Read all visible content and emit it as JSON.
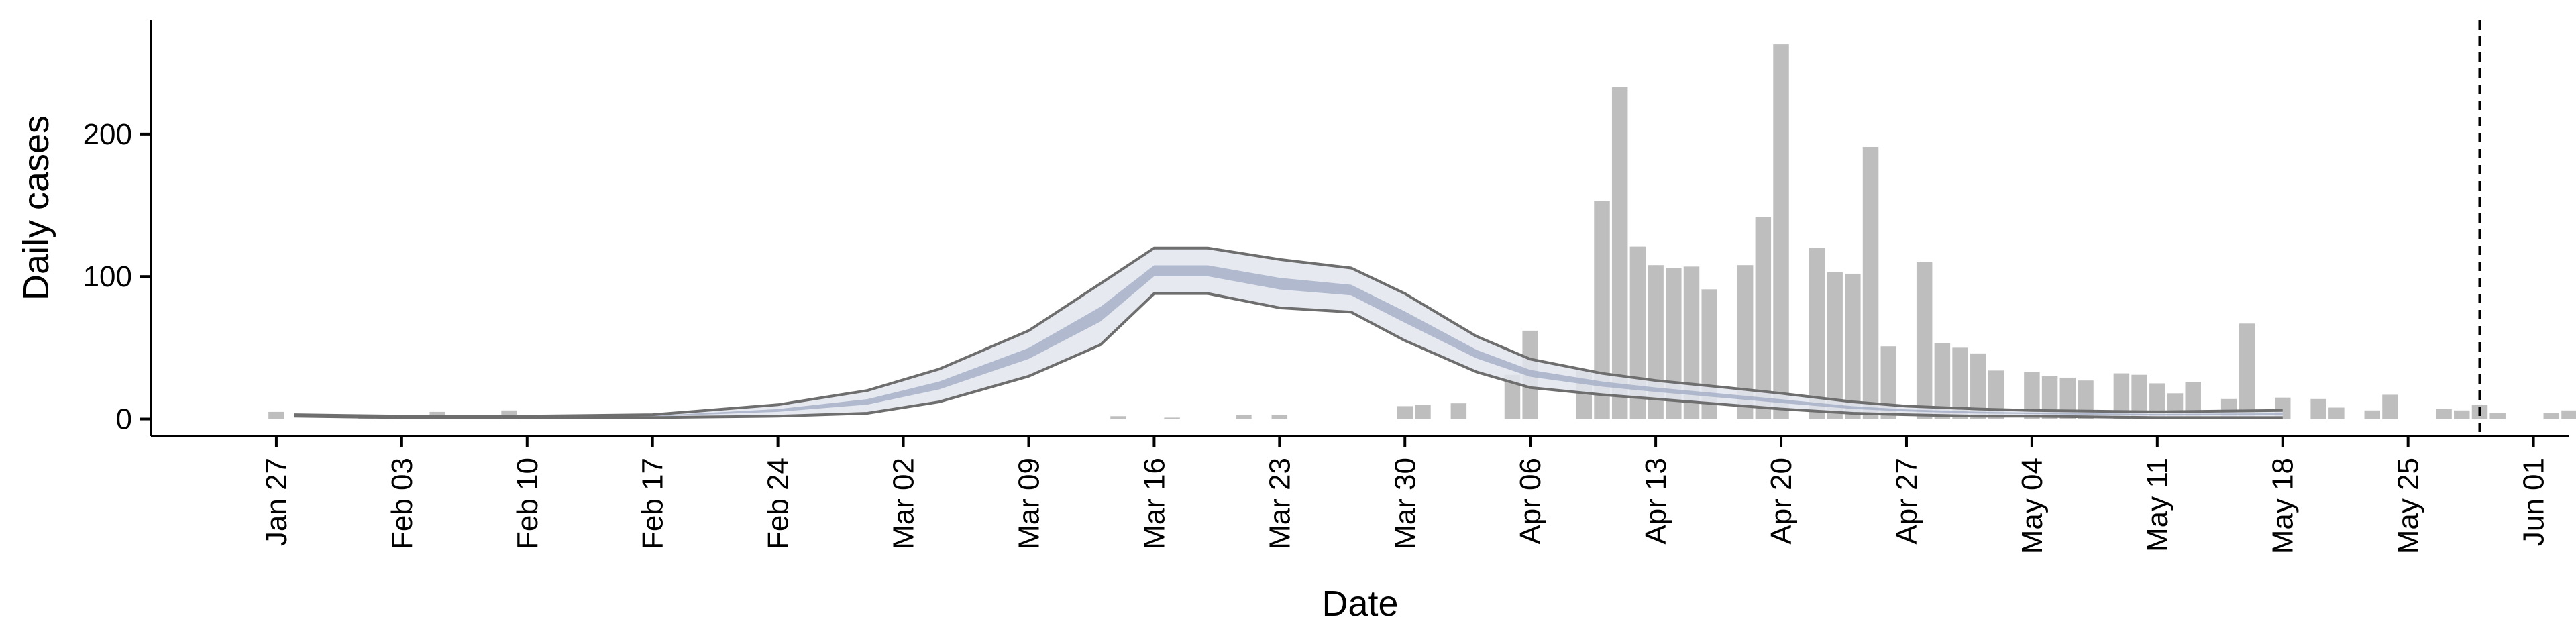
{
  "chart_data": {
    "type": "bar",
    "title": "",
    "xlabel": "Date",
    "ylabel": "Daily cases",
    "x_axis": {
      "type": "date",
      "range": [
        "2020-01-20",
        "2020-06-03"
      ]
    },
    "ylim": [
      -12,
      280
    ],
    "x_ticks": [
      {
        "date": "2020-01-27",
        "label": "Jan 27"
      },
      {
        "date": "2020-02-03",
        "label": "Feb 03"
      },
      {
        "date": "2020-02-10",
        "label": "Feb 10"
      },
      {
        "date": "2020-02-17",
        "label": "Feb 17"
      },
      {
        "date": "2020-02-24",
        "label": "Feb 24"
      },
      {
        "date": "2020-03-02",
        "label": "Mar 02"
      },
      {
        "date": "2020-03-09",
        "label": "Mar 09"
      },
      {
        "date": "2020-03-16",
        "label": "Mar 16"
      },
      {
        "date": "2020-03-23",
        "label": "Mar 23"
      },
      {
        "date": "2020-03-30",
        "label": "Mar 30"
      },
      {
        "date": "2020-04-06",
        "label": "Apr 06"
      },
      {
        "date": "2020-04-13",
        "label": "Apr 13"
      },
      {
        "date": "2020-04-20",
        "label": "Apr 20"
      },
      {
        "date": "2020-04-27",
        "label": "Apr 27"
      },
      {
        "date": "2020-05-04",
        "label": "May 04"
      },
      {
        "date": "2020-05-11",
        "label": "May 11"
      },
      {
        "date": "2020-05-18",
        "label": "May 18"
      },
      {
        "date": "2020-05-25",
        "label": "May 25"
      },
      {
        "date": "2020-06-01",
        "label": "Jun 01"
      }
    ],
    "y_ticks": [
      0,
      100,
      200
    ],
    "grid": false,
    "bar_color": "#bebebe",
    "start_date": "2020-01-27",
    "daily_cases": [
      5,
      0,
      0,
      0,
      0,
      3,
      0,
      0,
      0,
      5,
      0,
      0,
      0,
      6,
      0,
      0,
      0,
      0,
      0,
      0,
      0,
      0,
      0,
      0,
      0,
      0,
      0,
      0,
      0,
      0,
      0,
      0,
      0,
      0,
      0,
      0,
      0,
      0,
      0,
      0,
      0,
      0,
      0,
      0,
      0,
      0,
      0,
      2,
      0,
      0,
      1,
      0,
      0,
      0,
      3,
      0,
      3,
      0,
      0,
      0,
      0,
      0,
      0,
      9,
      10,
      0,
      11,
      0,
      0,
      31,
      62,
      0,
      0,
      34,
      153,
      233,
      121,
      108,
      106,
      107,
      91,
      0,
      108,
      142,
      263,
      0,
      120,
      103,
      102,
      191,
      51,
      0,
      110,
      53,
      50,
      46,
      34,
      0,
      33,
      30,
      29,
      27,
      0,
      32,
      31,
      25,
      18,
      26,
      0,
      14,
      67,
      0,
      15,
      0,
      14,
      8,
      0,
      6,
      17,
      0,
      0,
      7,
      6,
      10,
      4,
      0,
      0,
      4,
      6,
      8,
      0,
      4,
      0,
      4,
      4,
      0,
      0,
      3,
      8,
      11
    ],
    "nowcast_band": {
      "fill_outer": "#e3e5ef",
      "fill_inner": "#a6b0c7",
      "line_color": "#6e6e6e",
      "points": [
        {
          "date": "2020-01-28",
          "lower": 2,
          "upper": 3
        },
        {
          "date": "2020-02-03",
          "lower": 1,
          "upper": 2
        },
        {
          "date": "2020-02-10",
          "lower": 1,
          "upper": 2
        },
        {
          "date": "2020-02-17",
          "lower": 1,
          "upper": 3
        },
        {
          "date": "2020-02-24",
          "lower": 2,
          "upper": 10
        },
        {
          "date": "2020-02-29",
          "lower": 4,
          "upper": 20
        },
        {
          "date": "2020-03-04",
          "lower": 12,
          "upper": 35
        },
        {
          "date": "2020-03-09",
          "lower": 30,
          "upper": 62
        },
        {
          "date": "2020-03-13",
          "lower": 52,
          "upper": 95
        },
        {
          "date": "2020-03-16",
          "lower": 88,
          "upper": 120
        },
        {
          "date": "2020-03-19",
          "lower": 88,
          "upper": 120
        },
        {
          "date": "2020-03-23",
          "lower": 78,
          "upper": 112
        },
        {
          "date": "2020-03-27",
          "lower": 75,
          "upper": 106
        },
        {
          "date": "2020-03-30",
          "lower": 55,
          "upper": 88
        },
        {
          "date": "2020-04-03",
          "lower": 33,
          "upper": 58
        },
        {
          "date": "2020-04-06",
          "lower": 22,
          "upper": 42
        },
        {
          "date": "2020-04-10",
          "lower": 17,
          "upper": 32
        },
        {
          "date": "2020-04-13",
          "lower": 14,
          "upper": 27
        },
        {
          "date": "2020-04-17",
          "lower": 10,
          "upper": 22
        },
        {
          "date": "2020-04-20",
          "lower": 7,
          "upper": 18
        },
        {
          "date": "2020-04-24",
          "lower": 4,
          "upper": 12
        },
        {
          "date": "2020-04-27",
          "lower": 3,
          "upper": 9
        },
        {
          "date": "2020-05-01",
          "lower": 2,
          "upper": 7
        },
        {
          "date": "2020-05-04",
          "lower": 2,
          "upper": 6
        },
        {
          "date": "2020-05-11",
          "lower": 1,
          "upper": 5
        },
        {
          "date": "2020-05-18",
          "lower": 1,
          "upper": 6
        }
      ]
    },
    "vline": {
      "date": "2020-05-29",
      "style": "dashed",
      "color": "#000000"
    }
  }
}
